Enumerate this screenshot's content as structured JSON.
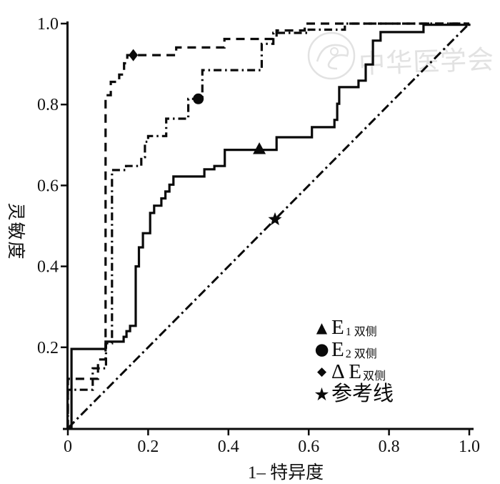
{
  "figure": {
    "background": "#ffffff",
    "ink": "#0a0a0a",
    "watermark_color": "#e2e2e2"
  },
  "watermark": {
    "text": "中华医学会",
    "emblem": "circular-seal"
  },
  "chart_data": {
    "type": "line",
    "subtype": "roc-step-curves",
    "title": "",
    "xlabel": "1– 特异度",
    "ylabel": "灵敏度",
    "xlim": [
      0,
      1
    ],
    "ylim": [
      0,
      1
    ],
    "grid": false,
    "legend_position": "inside-lower-right",
    "x_ticks": {
      "values": [
        0,
        0.2,
        0.4,
        0.6,
        0.8,
        1.0
      ],
      "labels": [
        "0",
        "0.2",
        "0.4",
        "0.6",
        "0.8",
        "1.0"
      ]
    },
    "y_ticks": {
      "values": [
        0.2,
        0.4,
        0.6,
        0.8,
        1.0
      ],
      "labels": [
        "0.2",
        "0.4",
        "0.6",
        "0.8",
        "1.0"
      ]
    },
    "series": [
      {
        "name": "E1 双侧",
        "line_style": "solid",
        "marker": "triangle",
        "marker_at": [
          0.477,
          0.69
        ],
        "points": [
          [
            0,
            0
          ],
          [
            0.009,
            0
          ],
          [
            0.009,
            0.196
          ],
          [
            0.094,
            0.196
          ],
          [
            0.094,
            0.214
          ],
          [
            0.139,
            0.214
          ],
          [
            0.139,
            0.226
          ],
          [
            0.146,
            0.226
          ],
          [
            0.146,
            0.24
          ],
          [
            0.155,
            0.24
          ],
          [
            0.155,
            0.253
          ],
          [
            0.169,
            0.253
          ],
          [
            0.169,
            0.4
          ],
          [
            0.177,
            0.4
          ],
          [
            0.177,
            0.447
          ],
          [
            0.187,
            0.447
          ],
          [
            0.187,
            0.482
          ],
          [
            0.205,
            0.482
          ],
          [
            0.205,
            0.532
          ],
          [
            0.215,
            0.532
          ],
          [
            0.215,
            0.55
          ],
          [
            0.233,
            0.55
          ],
          [
            0.233,
            0.568
          ],
          [
            0.243,
            0.568
          ],
          [
            0.243,
            0.585
          ],
          [
            0.253,
            0.585
          ],
          [
            0.253,
            0.602
          ],
          [
            0.263,
            0.602
          ],
          [
            0.263,
            0.622
          ],
          [
            0.34,
            0.622
          ],
          [
            0.34,
            0.64
          ],
          [
            0.365,
            0.64
          ],
          [
            0.365,
            0.648
          ],
          [
            0.391,
            0.648
          ],
          [
            0.391,
            0.688
          ],
          [
            0.52,
            0.688
          ],
          [
            0.52,
            0.719
          ],
          [
            0.608,
            0.719
          ],
          [
            0.608,
            0.744
          ],
          [
            0.664,
            0.744
          ],
          [
            0.664,
            0.762
          ],
          [
            0.671,
            0.762
          ],
          [
            0.671,
            0.802
          ],
          [
            0.676,
            0.802
          ],
          [
            0.676,
            0.843
          ],
          [
            0.724,
            0.843
          ],
          [
            0.724,
            0.859
          ],
          [
            0.742,
            0.859
          ],
          [
            0.742,
            0.899
          ],
          [
            0.76,
            0.899
          ],
          [
            0.76,
            0.958
          ],
          [
            0.779,
            0.958
          ],
          [
            0.779,
            0.979
          ],
          [
            0.886,
            0.979
          ],
          [
            0.886,
            0.997
          ],
          [
            1,
            0.997
          ],
          [
            1,
            1
          ]
        ]
      },
      {
        "name": "E2 双侧",
        "line_style": "dashdot",
        "marker": "circle",
        "marker_at": [
          0.325,
          0.814
        ],
        "points": [
          [
            0,
            0
          ],
          [
            0,
            0.095
          ],
          [
            0.062,
            0.095
          ],
          [
            0.062,
            0.148
          ],
          [
            0.095,
            0.148
          ],
          [
            0.095,
            0.21
          ],
          [
            0.11,
            0.21
          ],
          [
            0.11,
            0.638
          ],
          [
            0.145,
            0.638
          ],
          [
            0.145,
            0.648
          ],
          [
            0.183,
            0.648
          ],
          [
            0.183,
            0.67
          ],
          [
            0.192,
            0.67
          ],
          [
            0.192,
            0.708
          ],
          [
            0.2,
            0.708
          ],
          [
            0.2,
            0.722
          ],
          [
            0.245,
            0.722
          ],
          [
            0.245,
            0.765
          ],
          [
            0.3,
            0.765
          ],
          [
            0.3,
            0.814
          ],
          [
            0.335,
            0.814
          ],
          [
            0.335,
            0.885
          ],
          [
            0.483,
            0.885
          ],
          [
            0.483,
            0.95
          ],
          [
            0.512,
            0.95
          ],
          [
            0.512,
            0.977
          ],
          [
            0.6,
            0.977
          ],
          [
            0.6,
            0.985
          ],
          [
            0.69,
            0.985
          ],
          [
            0.69,
            1
          ],
          [
            1,
            1
          ]
        ]
      },
      {
        "name": "ΔE 双侧",
        "line_style": "dashed",
        "marker": "diamond",
        "marker_at": [
          0.163,
          0.922
        ],
        "points": [
          [
            0,
            0
          ],
          [
            0,
            0.122
          ],
          [
            0.075,
            0.122
          ],
          [
            0.075,
            0.17
          ],
          [
            0.094,
            0.17
          ],
          [
            0.094,
            0.823
          ],
          [
            0.107,
            0.823
          ],
          [
            0.107,
            0.856
          ],
          [
            0.128,
            0.856
          ],
          [
            0.128,
            0.874
          ],
          [
            0.14,
            0.874
          ],
          [
            0.14,
            0.902
          ],
          [
            0.148,
            0.902
          ],
          [
            0.148,
            0.922
          ],
          [
            0.27,
            0.922
          ],
          [
            0.27,
            0.941
          ],
          [
            0.39,
            0.941
          ],
          [
            0.39,
            0.962
          ],
          [
            0.52,
            0.962
          ],
          [
            0.52,
            0.983
          ],
          [
            0.59,
            0.983
          ],
          [
            0.59,
            1
          ],
          [
            1,
            1
          ]
        ]
      },
      {
        "name": "参考线",
        "line_style": "refline",
        "marker": "star",
        "marker_at": [
          0.516,
          0.516
        ],
        "points": [
          [
            0,
            0
          ],
          [
            1,
            1
          ]
        ]
      }
    ]
  },
  "legend": {
    "items": [
      {
        "symbol": "▲",
        "main": "E",
        "sub": "1 双侧"
      },
      {
        "symbol": "●",
        "main": "E",
        "sub": "2 双侧"
      },
      {
        "symbol": "◆",
        "main": "Δ E",
        "sub": "双侧"
      },
      {
        "symbol": "★",
        "main": "参考线",
        "sub": ""
      }
    ]
  }
}
